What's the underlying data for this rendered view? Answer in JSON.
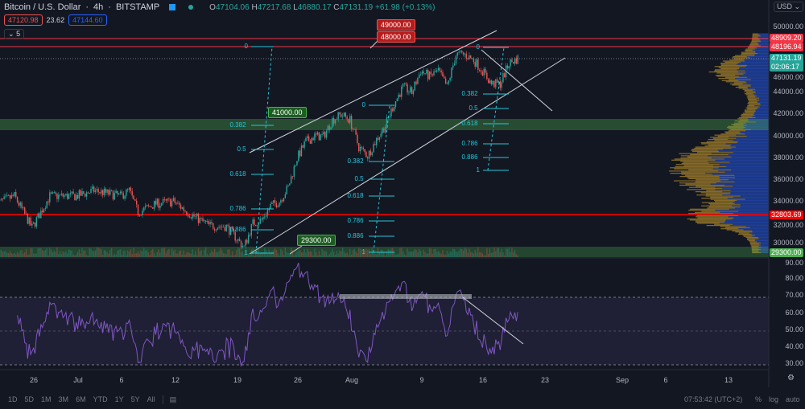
{
  "header": {
    "symbol": "Bitcoin / U.S. Dollar",
    "interval": "4h",
    "exchange": "BITSTAMP",
    "o_label": "O",
    "open": "47104.06",
    "h_label": "H",
    "high": "47217.68",
    "l_label": "L",
    "low": "46880.17",
    "c_label": "C",
    "close": "47131.19",
    "change": "+61.98 (+0.13%)",
    "bid": "47120.98",
    "spread": "23.62",
    "ask": "47144.60",
    "indicators_toggle": "5"
  },
  "price_scale": {
    "currency": "USD",
    "labels": [
      "50000.00",
      "46000.00",
      "44000.00",
      "42000.00",
      "40000.00",
      "38000.00",
      "36000.00",
      "34000.00",
      "32000.00",
      "30000.00"
    ],
    "tags": {
      "line1": "48909.20",
      "line2": "48196.94",
      "last": "47131.19",
      "countdown": "02:06:17",
      "line3": "32803.69",
      "zone": "29300.00"
    }
  },
  "rsi_scale": {
    "labels": [
      "90.00",
      "80.00",
      "70.00",
      "60.00",
      "50.00",
      "40.00",
      "30.00"
    ]
  },
  "drawings": {
    "label_49000": "49000.00",
    "label_48000": "48000.00",
    "label_41000": "41000.00",
    "label_29300": "29300.00",
    "fib_levels": [
      "0",
      "0.382",
      "0.5",
      "0.618",
      "0.786",
      "0.886",
      "1"
    ]
  },
  "x_axis": [
    "26",
    "Jul",
    "6",
    "12",
    "19",
    "26",
    "Aug",
    "9",
    "16",
    "23",
    "Sep",
    "6",
    "13"
  ],
  "bottom_bar": {
    "ranges": [
      "1D",
      "5D",
      "1M",
      "3M",
      "6M",
      "YTD",
      "1Y",
      "5Y",
      "All"
    ],
    "time": "07:53:42 (UTC+2)",
    "percent": "%",
    "log": "log",
    "auto": "auto"
  },
  "colors": {
    "up": "#26a69a",
    "down": "#ef5350",
    "rsi": "#7e57c2",
    "zone": "#4caf50",
    "line": "#f23645"
  },
  "chart_data": {
    "type": "candlestick",
    "timeframe": "4h",
    "ylim": [
      29000,
      50500
    ],
    "rsi_ylim": [
      28,
      92
    ],
    "daily_close": [
      [
        "2021-06-22",
        33800
      ],
      [
        "2021-06-24",
        34500
      ],
      [
        "2021-06-26",
        31600
      ],
      [
        "2021-06-28",
        34500
      ],
      [
        "2021-07-01",
        34500
      ],
      [
        "2021-07-03",
        35000
      ],
      [
        "2021-07-06",
        34500
      ],
      [
        "2021-07-07",
        35000
      ],
      [
        "2021-07-08",
        33000
      ],
      [
        "2021-07-10",
        33800
      ],
      [
        "2021-07-12",
        34000
      ],
      [
        "2021-07-14",
        32800
      ],
      [
        "2021-07-16",
        31800
      ],
      [
        "2021-07-18",
        31700
      ],
      [
        "2021-07-20",
        29800
      ],
      [
        "2021-07-21",
        32000
      ],
      [
        "2021-07-22",
        32300
      ],
      [
        "2021-07-23",
        33600
      ],
      [
        "2021-07-24",
        34000
      ],
      [
        "2021-07-25",
        35300
      ],
      [
        "2021-07-26",
        38000
      ],
      [
        "2021-07-27",
        39500
      ],
      [
        "2021-07-28",
        40000
      ],
      [
        "2021-07-29",
        40000
      ],
      [
        "2021-07-30",
        41500
      ],
      [
        "2021-07-31",
        42000
      ],
      [
        "2021-08-01",
        41500
      ],
      [
        "2021-08-02",
        39000
      ],
      [
        "2021-08-03",
        38200
      ],
      [
        "2021-08-04",
        39700
      ],
      [
        "2021-08-05",
        41000
      ],
      [
        "2021-08-06",
        43000
      ],
      [
        "2021-08-07",
        44500
      ],
      [
        "2021-08-08",
        44000
      ],
      [
        "2021-08-09",
        46000
      ],
      [
        "2021-08-10",
        45500
      ],
      [
        "2021-08-11",
        46000
      ],
      [
        "2021-08-12",
        44500
      ],
      [
        "2021-08-13",
        47500
      ],
      [
        "2021-08-14",
        47500
      ],
      [
        "2021-08-15",
        47000
      ],
      [
        "2021-08-16",
        46000
      ],
      [
        "2021-08-17",
        44800
      ],
      [
        "2021-08-18",
        44800
      ],
      [
        "2021-08-19",
        46700
      ],
      [
        "2021-08-20",
        47131
      ]
    ]
  }
}
